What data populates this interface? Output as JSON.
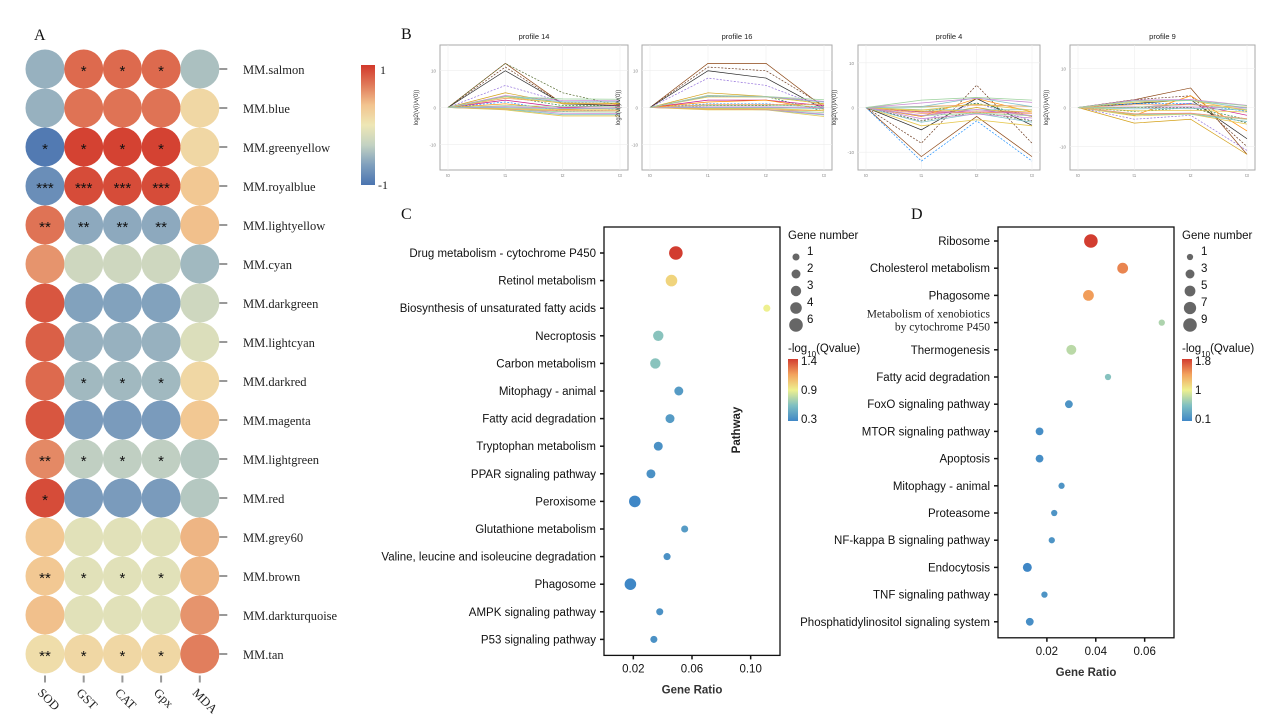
{
  "panels": {
    "A": "A",
    "B": "B",
    "C": "C",
    "D": "D"
  },
  "chart_data": [
    {
      "id": "A",
      "type": "heatmap",
      "title": "",
      "columns": [
        "SOD",
        "GST",
        "CAT",
        "Gpx",
        "MDA"
      ],
      "rows": [
        "MM.salmon",
        "MM.blue",
        "MM.greenyellow",
        "MM.royalblue",
        "MM.lightyellow",
        "MM.cyan",
        "MM.darkgreen",
        "MM.lightcyan",
        "MM.darkred",
        "MM.magenta",
        "MM.lightgreen",
        "MM.red",
        "MM.grey60",
        "MM.brown",
        "MM.darkturquoise",
        "MM.tan"
      ],
      "values": [
        [
          -0.55,
          0.75,
          0.75,
          0.75,
          -0.45
        ],
        [
          -0.55,
          0.7,
          0.7,
          0.7,
          0.15
        ],
        [
          -0.95,
          0.95,
          0.95,
          0.95,
          0.15
        ],
        [
          -0.8,
          0.9,
          0.9,
          0.9,
          0.3
        ],
        [
          0.7,
          -0.6,
          -0.6,
          -0.6,
          0.35
        ],
        [
          0.55,
          -0.25,
          -0.25,
          -0.25,
          -0.5
        ],
        [
          0.85,
          -0.65,
          -0.65,
          -0.65,
          -0.25
        ],
        [
          0.8,
          -0.55,
          -0.55,
          -0.55,
          -0.15
        ],
        [
          0.75,
          -0.5,
          -0.5,
          -0.5,
          0.15
        ],
        [
          0.85,
          -0.7,
          -0.7,
          -0.7,
          0.3
        ],
        [
          0.6,
          -0.35,
          -0.35,
          -0.35,
          -0.4
        ],
        [
          0.9,
          -0.7,
          -0.7,
          -0.7,
          -0.4
        ],
        [
          0.3,
          -0.1,
          -0.1,
          -0.1,
          0.4
        ],
        [
          0.3,
          -0.1,
          -0.1,
          -0.1,
          0.4
        ],
        [
          0.35,
          -0.1,
          -0.1,
          -0.1,
          0.55
        ],
        [
          0.1,
          0.15,
          0.15,
          0.15,
          0.65
        ]
      ],
      "significance": [
        [
          "",
          "*",
          "*",
          "*",
          ""
        ],
        [
          "",
          "",
          "",
          "",
          ""
        ],
        [
          "*",
          "*",
          "*",
          "*",
          ""
        ],
        [
          "***",
          "***",
          "***",
          "***",
          ""
        ],
        [
          "**",
          "**",
          "**",
          "**",
          ""
        ],
        [
          "",
          "",
          "",
          "",
          ""
        ],
        [
          "",
          "",
          "",
          "",
          ""
        ],
        [
          "",
          "",
          "",
          "",
          ""
        ],
        [
          "",
          "*",
          "*",
          "*",
          ""
        ],
        [
          "",
          "",
          "",
          "",
          ""
        ],
        [
          "**",
          "*",
          "*",
          "*",
          ""
        ],
        [
          "*",
          "",
          "",
          "",
          ""
        ],
        [
          "",
          "",
          "",
          "",
          ""
        ],
        [
          "**",
          "*",
          "*",
          "*",
          ""
        ],
        [
          "",
          "",
          "",
          "",
          ""
        ],
        [
          "**",
          "*",
          "*",
          "*",
          ""
        ]
      ],
      "colorbar": {
        "max_label": "1",
        "min_label": "-1",
        "range": [
          -1,
          1
        ],
        "colors": [
          "#4575b4",
          "#91bfdb",
          "#ffffbf",
          "#fc8d59",
          "#d73027"
        ]
      }
    },
    {
      "id": "B",
      "type": "line",
      "ylabel": "log2(v(i)/v(0))",
      "profiles": [
        {
          "title": "profile 14",
          "x": [
            "t0",
            "t1",
            "t2",
            "t3"
          ],
          "yticks": [
            "10",
            "0",
            "-10"
          ],
          "ylim": [
            -17,
            17
          ],
          "series": [
            [
              0,
              12,
              1,
              1
            ],
            [
              0,
              11,
              1,
              1
            ],
            [
              0,
              10,
              1,
              0.5
            ],
            [
              0,
              6,
              1.5,
              1
            ],
            [
              0,
              4,
              1,
              1
            ],
            [
              0,
              3,
              0.5,
              0.5
            ],
            [
              0,
              2,
              0,
              0.5
            ],
            [
              0,
              1.5,
              -1,
              -0.5
            ],
            [
              0,
              1,
              -0.5,
              0
            ],
            [
              0,
              12,
              4,
              0.5
            ]
          ]
        },
        {
          "title": "profile 16",
          "x": [
            "t0",
            "t1",
            "t2",
            "t3"
          ],
          "yticks": [
            "10",
            "0",
            "-10"
          ],
          "ylim": [
            -17,
            17
          ],
          "series": [
            [
              0,
              12,
              12,
              0
            ],
            [
              0,
              11,
              10,
              0.5
            ],
            [
              0,
              10,
              8,
              -0.5
            ],
            [
              0,
              8,
              6,
              0
            ],
            [
              0,
              4,
              3,
              1
            ],
            [
              0,
              3,
              3,
              -1
            ],
            [
              0,
              2,
              2,
              0.5
            ],
            [
              0,
              1,
              1,
              0
            ],
            [
              0,
              1.5,
              2,
              -0.5
            ],
            [
              0,
              0.5,
              0.5,
              1
            ]
          ]
        },
        {
          "title": "profile 4",
          "x": [
            "t0",
            "t1",
            "t2",
            "t3"
          ],
          "yticks": [
            "10",
            "0",
            "-10"
          ],
          "ylim": [
            -14,
            14
          ],
          "series": [
            [
              0,
              -11,
              -2,
              -11
            ],
            [
              0,
              -8,
              5,
              -8
            ],
            [
              0,
              -5,
              2,
              -4
            ],
            [
              0,
              -3,
              1,
              -3
            ],
            [
              0,
              -2,
              0,
              -2
            ],
            [
              0,
              -1,
              1,
              -2
            ],
            [
              0,
              -1,
              -1,
              -1
            ],
            [
              0,
              -12,
              -3,
              -12
            ],
            [
              0,
              -2,
              2,
              -1
            ],
            [
              0,
              -3,
              -1,
              -3
            ]
          ]
        },
        {
          "title": "profile 9",
          "x": [
            "t0",
            "t1",
            "t2",
            "t3"
          ],
          "yticks": [
            "10",
            "0",
            "-10"
          ],
          "ylim": [
            -16,
            16
          ],
          "series": [
            [
              0,
              2,
              5,
              -12
            ],
            [
              0,
              2,
              3,
              -10
            ],
            [
              0,
              1,
              2,
              -8
            ],
            [
              0,
              -3,
              -2,
              -11
            ],
            [
              0,
              -4,
              -3,
              -12
            ],
            [
              0,
              -1,
              0,
              -3
            ],
            [
              0,
              0,
              1,
              -2
            ],
            [
              0,
              1,
              1,
              -1
            ],
            [
              0,
              -2,
              3,
              -6
            ],
            [
              0,
              0,
              0,
              -4
            ]
          ]
        }
      ]
    },
    {
      "id": "C",
      "type": "scatter",
      "xlabel": "Gene Ratio",
      "ylabel": "Pathway",
      "xticks": [
        "0.02",
        "0.06",
        "0.10"
      ],
      "xlim": [
        0.0,
        0.12
      ],
      "pathways": [
        "Drug metabolism - cytochrome P450",
        "Retinol metabolism",
        "Biosynthesis of unsaturated fatty acids",
        "Necroptosis",
        "Carbon metabolism",
        "Mitophagy - animal",
        "Fatty acid degradation",
        "Tryptophan metabolism",
        "PPAR signaling pathway",
        "Peroxisome",
        "Glutathione metabolism",
        "Valine, leucine and isoleucine degradation",
        "Phagosome",
        "AMPK signaling pathway",
        "P53 signaling pathway"
      ],
      "gene_ratio": [
        0.049,
        0.046,
        0.111,
        0.037,
        0.035,
        0.051,
        0.045,
        0.037,
        0.032,
        0.021,
        0.055,
        0.043,
        0.018,
        0.038,
        0.034
      ],
      "gene_number": [
        6,
        4,
        1,
        3,
        3,
        2,
        2,
        2,
        2,
        4,
        1,
        1,
        4,
        1,
        1
      ],
      "qvalue_log": [
        1.4,
        0.95,
        0.85,
        0.6,
        0.6,
        0.4,
        0.4,
        0.35,
        0.35,
        0.3,
        0.4,
        0.35,
        0.3,
        0.35,
        0.35
      ],
      "size_legend": {
        "title": "Gene number",
        "values": [
          "1",
          "2",
          "3",
          "4",
          "6"
        ]
      },
      "color_legend": {
        "title_prefix": "-log",
        "title_sub": "10",
        "title_suffix": "(Qvalue)",
        "labels": [
          "1.4",
          "0.9",
          "0.3"
        ],
        "range": [
          0.3,
          1.4
        ]
      }
    },
    {
      "id": "D",
      "type": "scatter",
      "xlabel": "Gene Ratio",
      "xticks": [
        "0.02",
        "0.04",
        "0.06"
      ],
      "xlim": [
        0.0,
        0.072
      ],
      "pathways": [
        "Ribosome",
        "Cholesterol metabolism",
        "Phagosome",
        "Metabolism of xenobiotics by cytochrome P450",
        "Thermogenesis",
        "Fatty acid degradation",
        "FoxO signaling pathway",
        "MTOR signaling pathway",
        "Apoptosis",
        "Mitophagy - animal",
        "Proteasome",
        "NF-kappa B signaling pathway",
        "Endocytosis",
        "TNF signaling pathway",
        "Phosphatidylinositol signaling system"
      ],
      "pathway_lines": [
        [
          "Ribosome"
        ],
        [
          "Cholesterol metabolism"
        ],
        [
          "Phagosome"
        ],
        [
          "Metabolism of xenobiotics",
          "by cytochrome P450"
        ],
        [
          "Thermogenesis"
        ],
        [
          "Fatty acid degradation"
        ],
        [
          "FoxO signaling pathway"
        ],
        [
          "MTOR signaling pathway"
        ],
        [
          "Apoptosis"
        ],
        [
          "Mitophagy - animal"
        ],
        [
          "Proteasome"
        ],
        [
          "NF-kappa B signaling pathway"
        ],
        [
          "Endocytosis"
        ],
        [
          "TNF signaling pathway"
        ],
        [
          "Phosphatidylinositol signaling system"
        ]
      ],
      "gene_ratio": [
        0.038,
        0.051,
        0.037,
        0.067,
        0.03,
        0.045,
        0.029,
        0.017,
        0.017,
        0.026,
        0.023,
        0.022,
        0.012,
        0.019,
        0.013
      ],
      "gene_number": [
        9,
        5,
        5,
        1,
        4,
        1,
        2,
        2,
        2,
        1,
        1,
        1,
        3,
        1,
        2
      ],
      "qvalue_log": [
        1.8,
        1.5,
        1.4,
        0.7,
        0.75,
        0.55,
        0.2,
        0.15,
        0.15,
        0.2,
        0.2,
        0.2,
        0.1,
        0.2,
        0.15
      ],
      "size_legend": {
        "title": "Gene number",
        "values": [
          "1",
          "3",
          "5",
          "7",
          "9"
        ]
      },
      "color_legend": {
        "title_prefix": "-log",
        "title_sub": "10",
        "title_suffix": "(Qvalue)",
        "labels": [
          "1.8",
          "1",
          "0.1"
        ],
        "range": [
          0.1,
          1.8
        ]
      }
    }
  ]
}
